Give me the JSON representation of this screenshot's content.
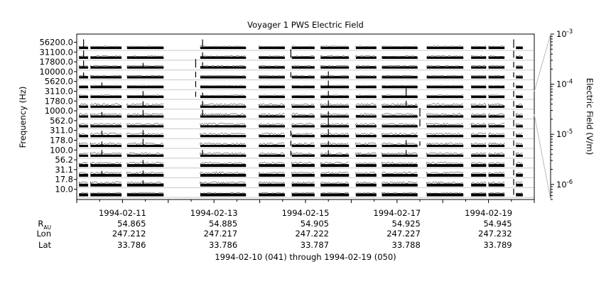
{
  "chart_data": {
    "type": "heatmap",
    "title": "Voyager 1 PWS Electric Field",
    "ylabel": "Frequency (Hz)",
    "colorbar_label": "Electric Field (V/m)",
    "colorbar_scale": "log",
    "colorbar_range": [
      5e-07,
      0.001
    ],
    "colorbar_ticks": [
      {
        "base": "10",
        "exp": "-3",
        "value": 0.001
      },
      {
        "base": "10",
        "exp": "-4",
        "value": 0.0001
      },
      {
        "base": "10",
        "exp": "-5",
        "value": 1e-05
      },
      {
        "base": "10",
        "exp": "-6",
        "value": 1e-06
      }
    ],
    "channels": [
      "56200.0",
      "31100.0",
      "17800.0",
      "10000.0",
      "5620.0",
      "3110.0",
      "1780.0",
      "1000.0",
      "562.0",
      "311.0",
      "178.0",
      "100.0",
      "56.2",
      "31.1",
      "17.8",
      "10.0"
    ],
    "x_range": [
      "1994-02-10",
      "1994-02-20"
    ],
    "x_ticks": [
      "1994-02-11",
      "1994-02-13",
      "1994-02-15",
      "1994-02-17",
      "1994-02-19"
    ],
    "data_coverage_days": [
      [
        0.05,
        0.25
      ],
      [
        0.3,
        0.98
      ],
      [
        1.1,
        1.9
      ],
      [
        2.7,
        3.7
      ],
      [
        3.98,
        4.55
      ],
      [
        4.7,
        5.2
      ],
      [
        5.33,
        5.95
      ],
      [
        6.1,
        6.55
      ],
      [
        6.67,
        7.45
      ],
      [
        7.65,
        8.45
      ],
      [
        8.62,
        8.95
      ],
      [
        9.0,
        9.35
      ],
      [
        9.6,
        9.75
      ]
    ],
    "bursts": [
      {
        "day": 0.15,
        "channels": [
          0,
          1,
          2,
          3
        ],
        "peak_channel": 0
      },
      {
        "day": 0.55,
        "channels": [
          4,
          7,
          9,
          10,
          11,
          13
        ],
        "peak_channel": 3
      },
      {
        "day": 1.45,
        "channels": [
          2,
          5,
          6,
          7,
          9,
          10,
          12,
          13,
          14
        ],
        "peak_channel": 1
      },
      {
        "day": 2.6,
        "channels": [
          2,
          3,
          4,
          5
        ],
        "peak_channel": 2
      },
      {
        "day": 2.75,
        "channels": [
          0,
          1,
          2,
          5,
          6,
          7,
          11
        ],
        "peak_channel": 0
      },
      {
        "day": 4.68,
        "channels": [
          1,
          3,
          9,
          10,
          11
        ],
        "peak_channel": 1
      },
      {
        "day": 5.5,
        "channels": [
          3,
          4,
          5,
          6,
          7,
          8,
          9,
          10,
          11
        ],
        "peak_channel": 8
      },
      {
        "day": 7.2,
        "channels": [
          5,
          6,
          10,
          11
        ],
        "peak_channel": 5
      },
      {
        "day": 7.5,
        "channels": [
          7,
          8,
          10
        ],
        "peak_channel": 7
      },
      {
        "day": 9.55,
        "channels": [
          0,
          1,
          2,
          3,
          4,
          5,
          6,
          7,
          8,
          9,
          10,
          11,
          12,
          13,
          14,
          15
        ],
        "peak_channel": 0
      }
    ],
    "ephemeris": {
      "labels": {
        "r_main": "R",
        "r_sub": "AU",
        "lon": "Lon",
        "lat": "Lat"
      },
      "columns": [
        {
          "r": "54.865",
          "lon": "247.212",
          "lat": "33.786"
        },
        {
          "r": "54.885",
          "lon": "247.217",
          "lat": "33.786"
        },
        {
          "r": "54.905",
          "lon": "247.222",
          "lat": "33.787"
        },
        {
          "r": "54.925",
          "lon": "247.227",
          "lat": "33.788"
        },
        {
          "r": "54.945",
          "lon": "247.232",
          "lat": "33.789"
        }
      ]
    },
    "date_range_label": "1994-02-10 (041) through 1994-02-19 (050)"
  }
}
